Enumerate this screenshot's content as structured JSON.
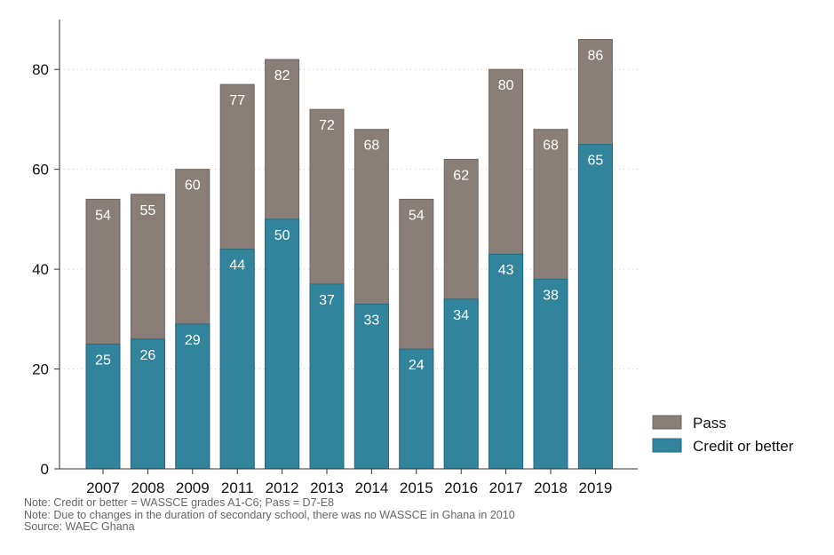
{
  "chart_data": {
    "type": "bar",
    "stacked": "overlay",
    "categories": [
      "2007",
      "2008",
      "2009",
      "2011",
      "2012",
      "2013",
      "2014",
      "2015",
      "2016",
      "2017",
      "2018",
      "2019"
    ],
    "series": [
      {
        "name": "Pass",
        "values": [
          54,
          55,
          60,
          77,
          82,
          72,
          68,
          54,
          62,
          80,
          68,
          86
        ],
        "color": "#8a7f78"
      },
      {
        "name": "Credit or better",
        "values": [
          25,
          26,
          29,
          44,
          50,
          37,
          33,
          24,
          34,
          43,
          38,
          65
        ],
        "color": "#31849b"
      }
    ],
    "y_ticks": [
      0,
      20,
      40,
      60,
      80
    ],
    "ylim": [
      0,
      90
    ],
    "grid": "dotted horizontal",
    "legend": {
      "position": "bottom-right",
      "items": [
        "Pass",
        "Credit or better"
      ]
    },
    "title": "",
    "xlabel": "",
    "ylabel": ""
  },
  "notes": [
    "Note: Credit or better = WASSCE grades A1-C6; Pass = D7-E8",
    "Note: Due to changes in the duration of secondary school, there was no WASSCE in Ghana in 2010",
    "Source: WAEC Ghana"
  ]
}
